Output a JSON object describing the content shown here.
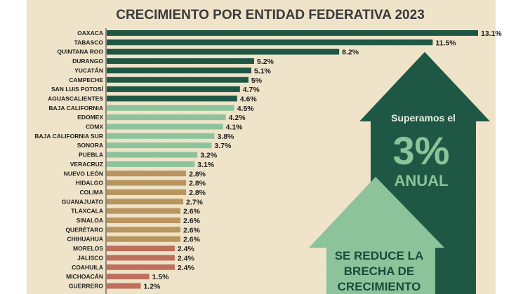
{
  "chart_data": {
    "type": "bar",
    "orientation": "horizontal",
    "title": "CRECIMIENTO POR ENTIDAD FEDERATIVA 2023",
    "categories": [
      "OAXACA",
      "TABASCO",
      "QUINTANA ROO",
      "DURANGO",
      "YUCATÁN",
      "CAMPECHE",
      "SAN LUIS POTOSÍ",
      "AGUASCALIENTES",
      "BAJA CALIFORNIA",
      "EDOMEX",
      "CDMX",
      "BAJA CALIFORNIA SUR",
      "SONORA",
      "PUEBLA",
      "VERACRUZ",
      "NUEVO LEÓN",
      "HIDALGO",
      "COLIMA",
      "GUANAJUATO",
      "TLAXCALA",
      "SINALOA",
      "QUERÉTARO",
      "CHIHUAHUA",
      "MORELOS",
      "JALISCO",
      "COAHUILA",
      "MICHOACÁN",
      "GUERRERO"
    ],
    "values": [
      13.1,
      11.5,
      8.2,
      5.2,
      5.1,
      5,
      4.7,
      4.6,
      4.5,
      4.2,
      4.1,
      3.8,
      3.7,
      3.2,
      3.1,
      2.8,
      2.8,
      2.8,
      2.7,
      2.6,
      2.6,
      2.6,
      2.6,
      2.4,
      2.4,
      2.4,
      1.5,
      1.2
    ],
    "value_labels": [
      "13.1%",
      "11.5%",
      "8.2%",
      "5.2%",
      "5.1%",
      "5%",
      "4.7%",
      "4.6%",
      "4.5%",
      "4.2%",
      "4.1%",
      "3.8%",
      "3.7%",
      "3.2%",
      "3.1%",
      "2.8%",
      "2.8%",
      "2.8%",
      "2.7%",
      "2.6%",
      "2.6%",
      "2.6%",
      "2.6%",
      "2.4%",
      "2.4%",
      "2.4%",
      "1.5%",
      "1.2%"
    ],
    "groups": [
      "dark",
      "dark",
      "dark",
      "dark",
      "dark",
      "dark",
      "dark",
      "dark",
      "light",
      "light",
      "light",
      "light",
      "light",
      "light",
      "light",
      "tan",
      "tan",
      "tan",
      "tan",
      "tan",
      "tan",
      "tan",
      "tan",
      "rust",
      "rust",
      "rust",
      "rust",
      "rust"
    ],
    "xlim": [
      0,
      13.1
    ],
    "grid": false
  },
  "colors": {
    "dark": "#1e5845",
    "light": "#8cc39a",
    "tan": "#b8945e",
    "rust": "#bf6f5c",
    "background": "#efe3c9"
  },
  "callouts": {
    "top_line": "Superamos el",
    "big": "3%",
    "bottom_line": "ANUAL",
    "second_lines": [
      "SE REDUCE LA",
      "BRECHA DE",
      "CRECIMIENTO"
    ]
  }
}
